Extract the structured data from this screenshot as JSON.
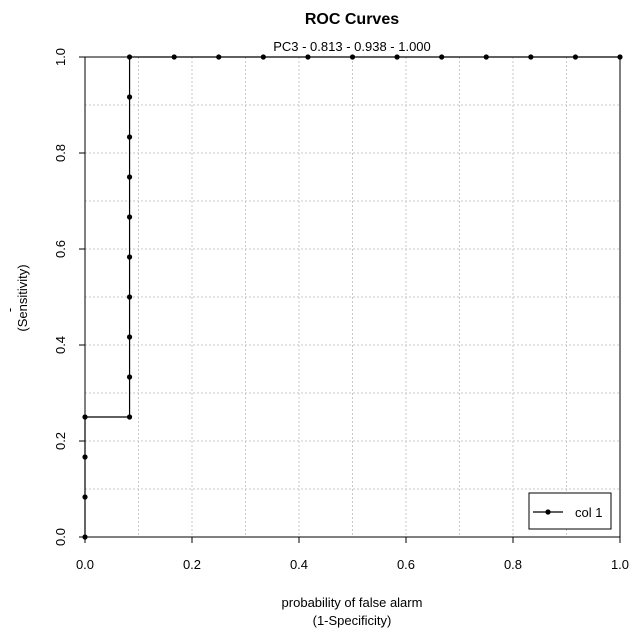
{
  "chart_data": {
    "type": "line",
    "title": "ROC Curves",
    "subtitle": "PC3 - 0.813 - 0.938 - 1.000",
    "xlabel": "probability of false alarm",
    "xlabel_line2": "(1-Specificity)",
    "ylabel_main": "(Sensitivity)",
    "ylabel_mark": "-",
    "xlim": [
      0,
      1
    ],
    "ylim": [
      0,
      1
    ],
    "x_ticks": [
      "0.0",
      "0.2",
      "0.4",
      "0.6",
      "0.8",
      "1.0"
    ],
    "y_ticks": [
      "0.0",
      "0.2",
      "0.4",
      "0.6",
      "0.8",
      "1.0"
    ],
    "grid": true,
    "legend_position": "bottom-right",
    "series": [
      {
        "name": "col 1",
        "color": "#000000",
        "x": [
          0,
          0,
          0,
          0,
          0.0833,
          0.0833,
          0.0833,
          0.0833,
          0.0833,
          0.0833,
          0.0833,
          0.0833,
          0.0833,
          0.0833,
          0.1667,
          0.25,
          0.3333,
          0.4167,
          0.5,
          0.5833,
          0.6667,
          0.75,
          0.8333,
          0.9167,
          1.0
        ],
        "y": [
          0,
          0.0833,
          0.1667,
          0.25,
          0.25,
          0.3333,
          0.4167,
          0.5,
          0.5833,
          0.6667,
          0.75,
          0.8333,
          0.9167,
          1.0,
          1.0,
          1.0,
          1.0,
          1.0,
          1.0,
          1.0,
          1.0,
          1.0,
          1.0,
          1.0,
          1.0
        ]
      }
    ]
  }
}
